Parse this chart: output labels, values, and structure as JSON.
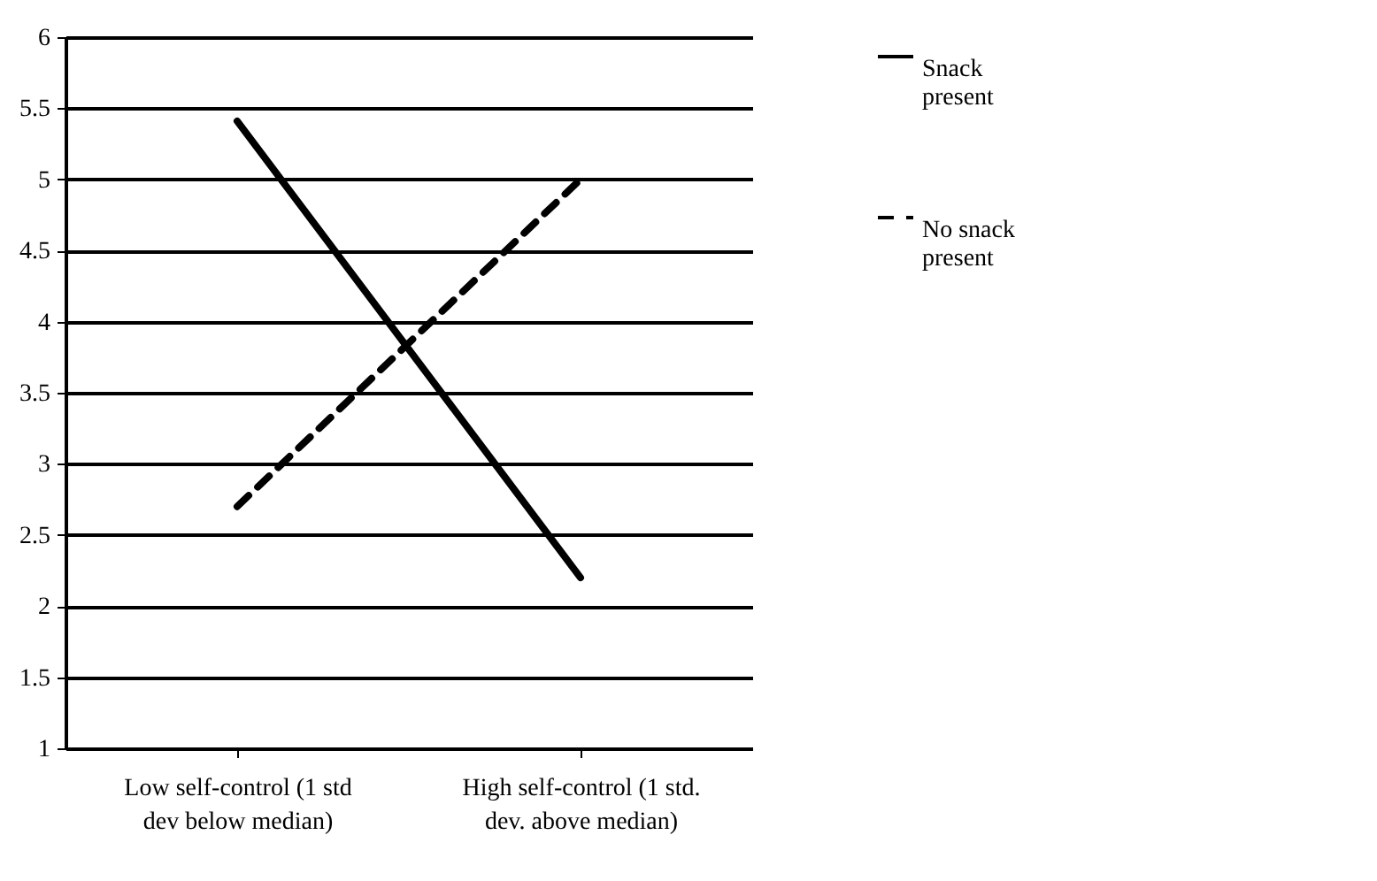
{
  "chart_data": {
    "type": "line",
    "categories": [
      "Low self-control (1 std dev below median)",
      "High self-control (1 std. dev. above median)"
    ],
    "series": [
      {
        "name": "Snack present",
        "color": "#000000",
        "line_style": "solid",
        "values": [
          5.41,
          2.2
        ]
      },
      {
        "name": "No snack present",
        "color": "#000000",
        "line_style": "dashed",
        "values": [
          2.7,
          5.0
        ]
      }
    ],
    "ylim": [
      1,
      6
    ],
    "yticks": [
      1,
      1.5,
      2,
      2.5,
      3,
      3.5,
      4,
      4.5,
      5,
      5.5,
      6
    ],
    "grid": "y",
    "legend": "right",
    "marker": "none"
  }
}
